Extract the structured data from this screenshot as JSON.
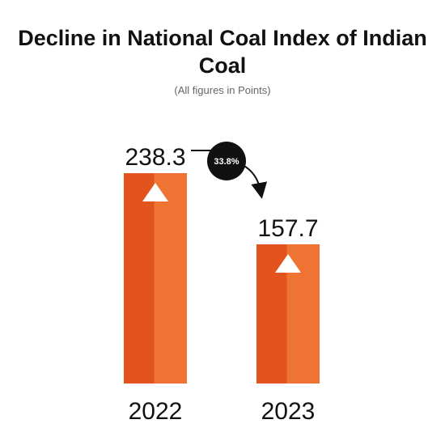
{
  "chart_data": {
    "type": "bar",
    "title": "Decline in National Coal Index of Indian Coal",
    "subtitle": "(All figures in Points)",
    "categories": [
      "2022",
      "2023"
    ],
    "values": [
      238.3,
      157.7
    ],
    "data_labels": [
      "238.3",
      "157.7"
    ],
    "change_label": "33.8%",
    "ylim": [
      0,
      275
    ],
    "grid": false,
    "colors": {
      "bar_dark": "#E2531E",
      "bar_light": "#EF7332",
      "badge": "#111111",
      "marker": "#ffffff"
    },
    "icons": [
      "up-triangle-icon",
      "curved-arrow-icon"
    ]
  }
}
